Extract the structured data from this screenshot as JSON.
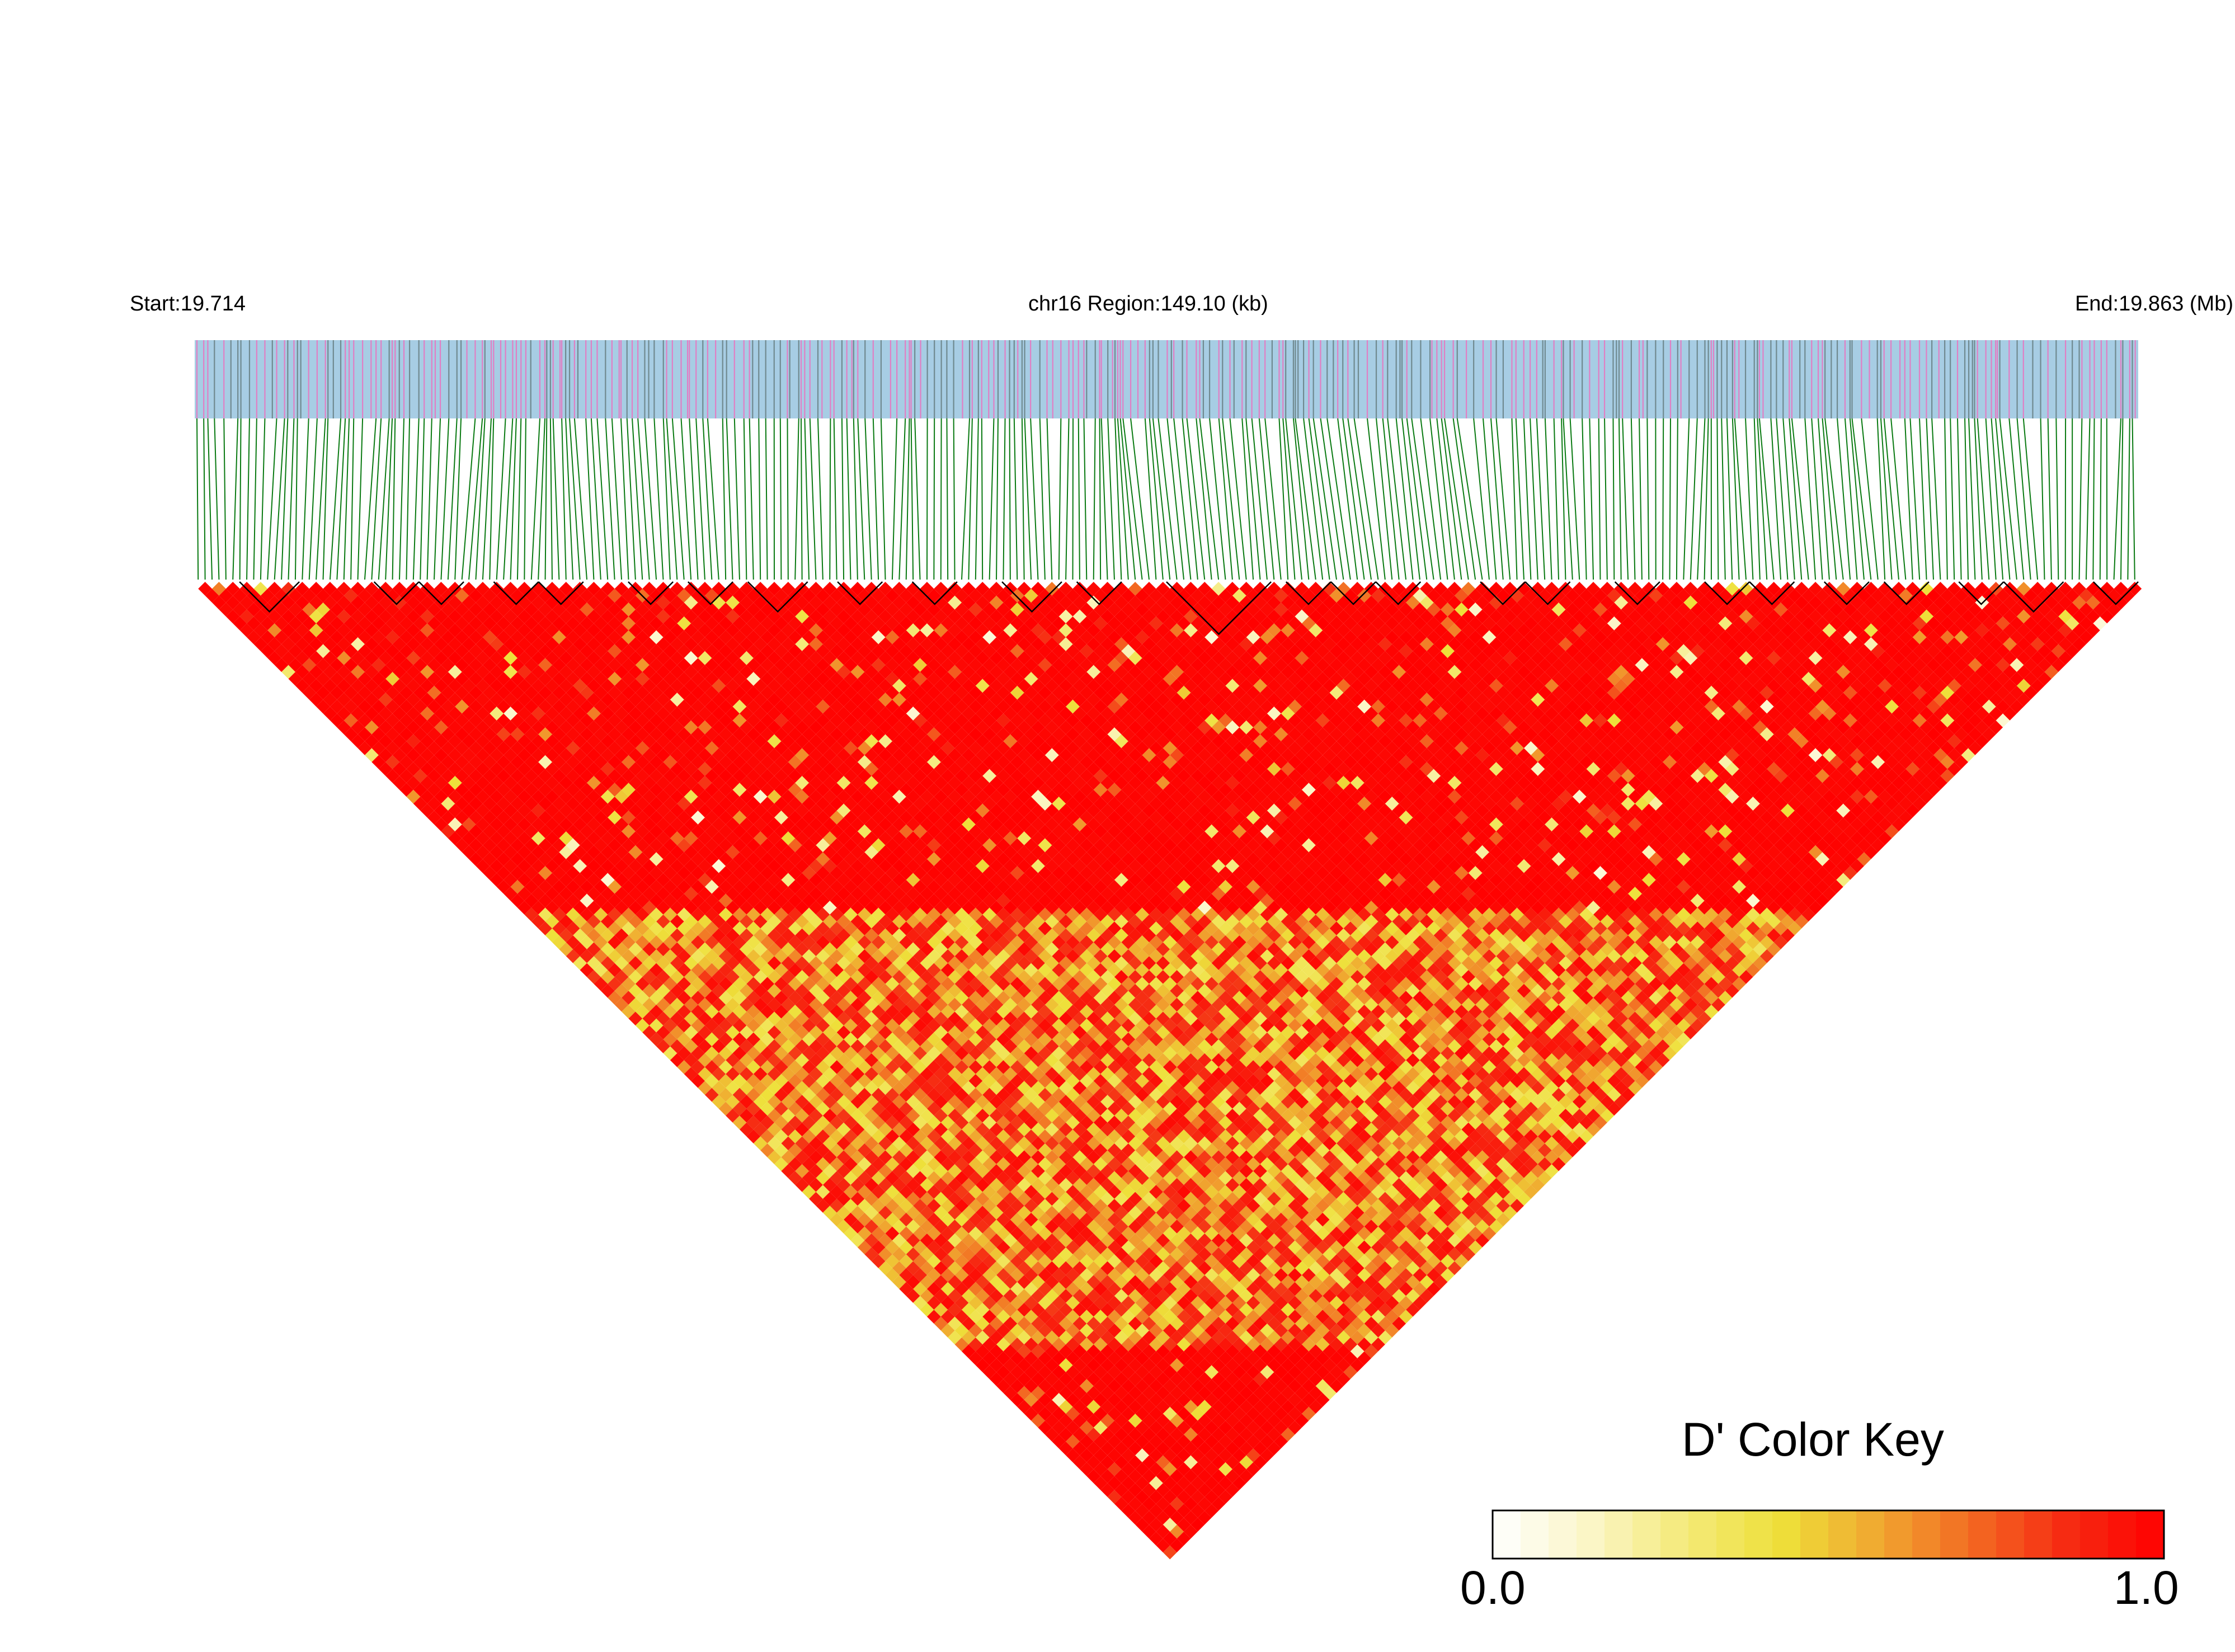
{
  "header": {
    "start_label": "Start:19.714",
    "region_label": "chr16 Region:149.10 (kb)",
    "end_label": "End:19.863 (Mb)"
  },
  "color_key": {
    "title": "D' Color Key",
    "min_label": "0.0",
    "max_label": "1.0",
    "min": 0.0,
    "max": 1.0,
    "colors": [
      "#ffffff",
      "#fbf6c8",
      "#f4ea7a",
      "#eee03a",
      "#f0a830",
      "#f36a22",
      "#f62a12",
      "#ff0000"
    ]
  },
  "colors": {
    "track_background": "#a7cde4",
    "marker_pink": "#e07fc4",
    "marker_gray": "#708a90",
    "connector_line": "#0a7a12",
    "block_outline": "#000000"
  },
  "chart_data": {
    "type": "heatmap",
    "description_type": "linkage-disequilibrium triangle",
    "chromosome": "chr16",
    "start_mb": 19.714,
    "end_mb": 19.863,
    "region_kb": 149.1,
    "metric": "D'",
    "value_range": [
      0.0,
      1.0
    ],
    "pattern": {
      "high_ld_value": 0.97,
      "low_ld_band_value": 0.45,
      "low_ld_band_regions": [
        {
          "row_range": [
            95,
            220
          ],
          "col_range": [
            0,
            120
          ]
        },
        {
          "row_range": [
            40,
            130
          ],
          "col_range": [
            150,
            210
          ]
        }
      ]
    },
    "ld_blocks_cell_spans": [
      [
        3,
        7
      ],
      [
        12,
        15
      ],
      [
        15,
        18
      ],
      [
        20,
        23
      ],
      [
        23,
        26
      ],
      [
        29,
        32
      ],
      [
        33,
        36
      ],
      [
        37,
        41
      ],
      [
        43,
        46
      ],
      [
        48,
        51
      ],
      [
        54,
        58
      ],
      [
        59,
        62
      ],
      [
        65,
        72
      ],
      [
        73,
        76
      ],
      [
        76,
        79
      ],
      [
        79,
        82
      ],
      [
        86,
        89
      ],
      [
        89,
        92
      ],
      [
        95,
        98
      ],
      [
        101,
        104
      ],
      [
        104,
        107
      ],
      [
        109,
        112
      ],
      [
        113,
        116
      ],
      [
        118,
        121
      ],
      [
        121,
        125
      ],
      [
        127,
        130
      ]
    ]
  }
}
